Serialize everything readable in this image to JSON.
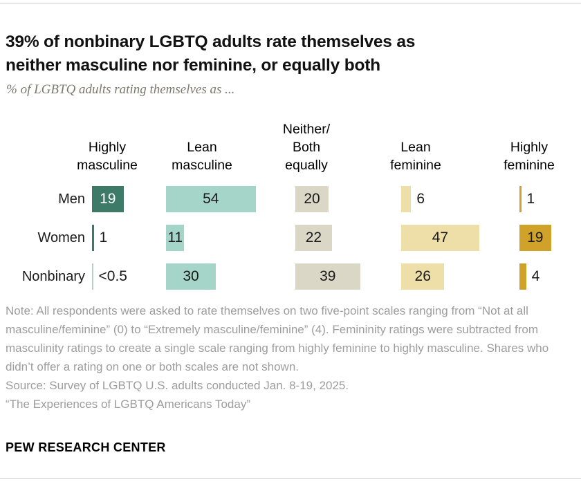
{
  "header": {
    "title": "39% of nonbinary LGBTQ adults rate themselves as\nneither masculine nor feminine, or equally both",
    "subtitle": "% of LGBTQ adults rating themselves as ..."
  },
  "chart_data": {
    "type": "bar",
    "orientation": "horizontal",
    "unit": "%",
    "title": "39% of nonbinary LGBTQ adults rate themselves as neither masculine nor feminine, or equally both",
    "subtitle": "% of LGBTQ adults rating themselves as ...",
    "categories": [
      "Highly masculine",
      "Lean masculine",
      "Neither/Both equally",
      "Lean feminine",
      "Highly feminine"
    ],
    "category_display": [
      "Highly\nmasculine",
      "Lean\nmasculine",
      "Neither/\nBoth\nequally",
      "Lean\nfeminine",
      "Highly\nfeminine"
    ],
    "rows": [
      {
        "label": "Men",
        "values": [
          19,
          54,
          20,
          6,
          1
        ],
        "display": [
          "19",
          "54",
          "20",
          "6",
          "1"
        ]
      },
      {
        "label": "Women",
        "values": [
          1,
          11,
          22,
          47,
          19
        ],
        "display": [
          "1",
          "11",
          "22",
          "47",
          "19"
        ]
      },
      {
        "label": "Nonbinary",
        "values": [
          0.5,
          30,
          39,
          26,
          4
        ],
        "display": [
          "<0.5",
          "30",
          "39",
          "26",
          "4"
        ]
      }
    ],
    "colors": [
      "#3d7a68",
      "#a5d5c8",
      "#dbd7c7",
      "#eedfa8",
      "#d1a22a"
    ],
    "white_text_cells": [
      [
        0,
        0
      ]
    ],
    "pale_hairline_cells": [
      [
        2,
        0
      ]
    ],
    "pale_hairline_color": "#b9cfc6",
    "legend_position": "none",
    "grid": false,
    "xlim": [
      0,
      60
    ]
  },
  "footer": {
    "note": "Note: All respondents were asked to rate themselves on two five-point scales ranging from “Not at all masculine/feminine” (0) to “Extremely masculine/feminine” (4). Femininity ratings were subtracted from masculinity ratings to create a single scale ranging from highly feminine to highly masculine. Shares who didn’t offer a rating on one or both scales are not shown.",
    "source": "Source: Survey of LGBTQ U.S. adults conducted Jan. 8-19, 2025.",
    "report": "“The Experiences of LGBTQ Americans Today”",
    "brand": "PEW RESEARCH CENTER"
  }
}
